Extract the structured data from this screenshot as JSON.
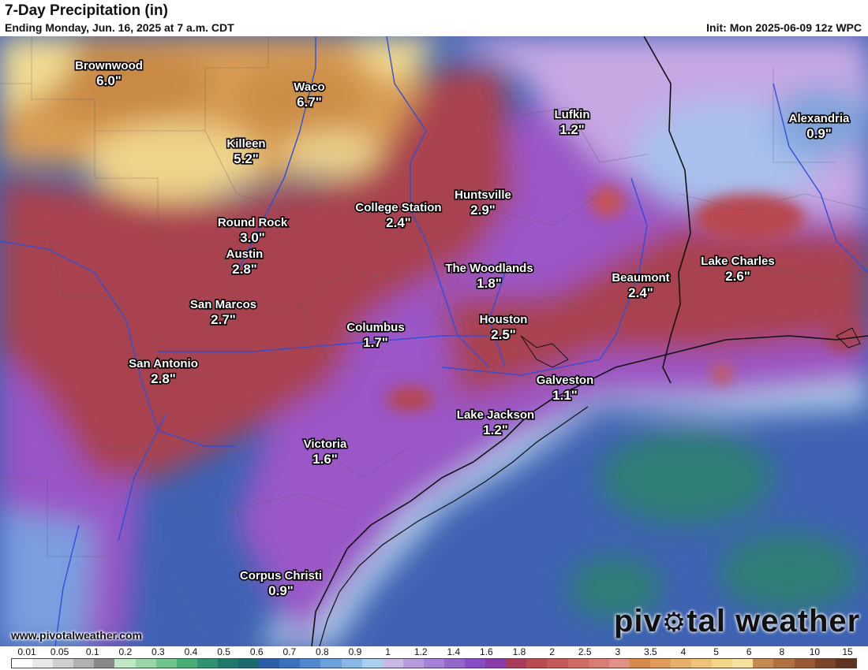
{
  "header": {
    "title": "7-Day Precipitation (in)",
    "subtitle": "Ending Monday, Jun. 16, 2025 at 7 a.m. CDT",
    "init": "Init: Mon 2025-06-09 12z WPC"
  },
  "cities": [
    {
      "name": "Brownwood",
      "value": "6.0\""
    },
    {
      "name": "Waco",
      "value": "6.7\""
    },
    {
      "name": "Killeen",
      "value": "5.2\""
    },
    {
      "name": "Lufkin",
      "value": "1.2\""
    },
    {
      "name": "Alexandria",
      "value": "0.9\""
    },
    {
      "name": "Huntsville",
      "value": "2.9\""
    },
    {
      "name": "College Station",
      "value": "2.4\""
    },
    {
      "name": "Round Rock",
      "value": "3.0\""
    },
    {
      "name": "Austin",
      "value": "2.8\""
    },
    {
      "name": "The Woodlands",
      "value": "1.8\""
    },
    {
      "name": "Lake Charles",
      "value": "2.6\""
    },
    {
      "name": "Beaumont",
      "value": "2.4\""
    },
    {
      "name": "San Marcos",
      "value": "2.7\""
    },
    {
      "name": "Columbus",
      "value": "1.7\""
    },
    {
      "name": "Houston",
      "value": "2.5\""
    },
    {
      "name": "San Antonio",
      "value": "2.8\""
    },
    {
      "name": "Galveston",
      "value": "1.1\""
    },
    {
      "name": "Lake Jackson",
      "value": "1.2\""
    },
    {
      "name": "Victoria",
      "value": "1.6\""
    },
    {
      "name": "Corpus Christi",
      "value": "0.9\""
    }
  ],
  "footer": {
    "site": "www.pivotalweather.com",
    "brand": "pivotal weather",
    "brand_icon": "gear-icon"
  },
  "legend": {
    "ticks": [
      "0.01",
      "0.05",
      "0.1",
      "0.2",
      "0.3",
      "0.4",
      "0.5",
      "0.6",
      "0.7",
      "0.8",
      "0.9",
      "1",
      "1.2",
      "1.4",
      "1.6",
      "1.8",
      "2",
      "2.5",
      "3",
      "3.5",
      "4",
      "5",
      "6",
      "8",
      "10",
      "15"
    ],
    "colors": [
      "#ffffff",
      "#e8e8e8",
      "#cfcfcf",
      "#b0b0b0",
      "#888888",
      "#bfe8c4",
      "#98d8a8",
      "#70c48c",
      "#4aae78",
      "#2e9470",
      "#1d7a6a",
      "#1a6a70",
      "#2a5fa8",
      "#3a70c0",
      "#5088d0",
      "#6aa0dc",
      "#88b8e6",
      "#a8cff0",
      "#c8b8e6",
      "#b89ce0",
      "#a680d6",
      "#9466cc",
      "#8a4cc4",
      "#8a3aa8",
      "#a83a5a",
      "#b84a50",
      "#c45a58",
      "#d06a64",
      "#d87c74",
      "#e09084",
      "#d88a4a",
      "#e09c58",
      "#e8b068",
      "#f0c478",
      "#f4d688",
      "#f6e2a0",
      "#c48a50",
      "#b07040",
      "#985834",
      "#7a4428",
      "#5e3420"
    ]
  },
  "colors": {
    "ocean_deep": "#3a5fb0",
    "ocean_teal": "#2e7a72",
    "coast_light": "#b8dcef",
    "purple": "#9a55c6",
    "maroon": "#a9434f",
    "tan": "#d9a056",
    "yellow": "#f3dd93",
    "gulf_purple": "#8e45b8"
  }
}
